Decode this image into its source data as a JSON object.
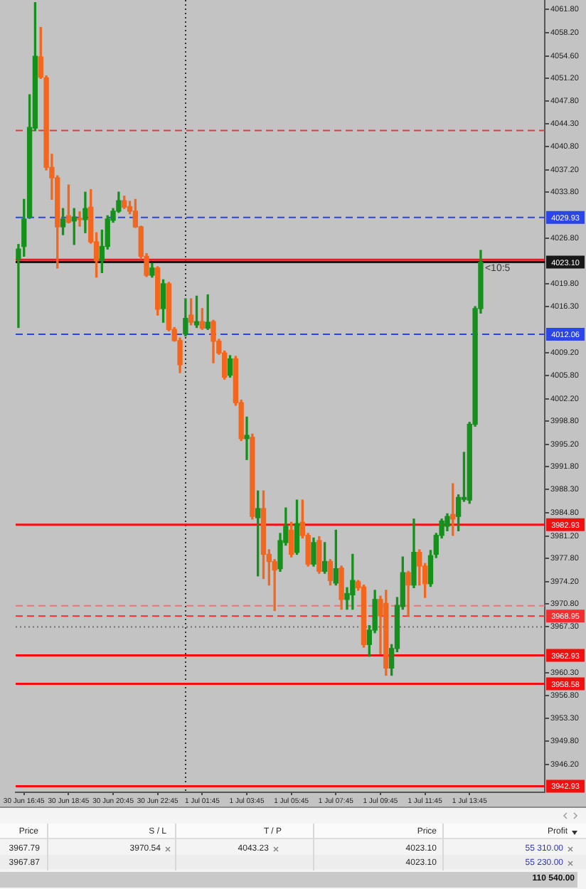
{
  "chart_data": [
    {
      "type": "candlestick",
      "categories": [
        null,
        "30 Jun 16:45",
        null,
        null,
        null,
        null,
        null,
        null,
        null,
        "30 Jun 18:45",
        null,
        null,
        null,
        null,
        null,
        null,
        null,
        "30 Jun 20:45",
        null,
        null,
        null,
        null,
        null,
        null,
        null,
        "30 Jun 22:45",
        null,
        null,
        null,
        null,
        null,
        null,
        null,
        "1 Jul 01:45",
        null,
        null,
        null,
        null,
        null,
        null,
        null,
        "1 Jul 03:45",
        null,
        null,
        null,
        null,
        null,
        null,
        null,
        "1 Jul 05:45",
        null,
        null,
        null,
        null,
        null,
        null,
        null,
        "1 Jul 07:45",
        null,
        null,
        null,
        null,
        null,
        null,
        null,
        "1 Jul 09:45",
        null,
        null,
        null,
        null,
        null,
        null,
        null,
        "1 Jul 11:45",
        null,
        null,
        null,
        null,
        null,
        null,
        null,
        "1 Jul 13:45",
        null,
        null,
        null,
        null,
        null,
        null,
        null,
        null,
        null,
        null,
        null,
        null,
        null
      ],
      "ohlc": [
        [
          4023.6,
          4025.8,
          4013.1,
          4025.1
        ],
        [
          4025.5,
          4032.7,
          4024.0,
          4029.7
        ],
        [
          4030.0,
          4048.7,
          4029.8,
          4043.7
        ],
        [
          4043.6,
          4062.8,
          4043.2,
          4054.6
        ],
        [
          4054.5,
          4059.0,
          4051.2,
          4051.4
        ],
        [
          4051.3,
          4051.6,
          4037.2,
          4037.6
        ],
        [
          4037.6,
          4039.6,
          4032.7,
          4036.0
        ],
        [
          4036.0,
          4036.3,
          4022.2,
          4028.5
        ],
        [
          4028.5,
          4031.3,
          4027.3,
          4029.7
        ],
        [
          4030.2,
          4034.9,
          4029.1,
          4029.2
        ],
        [
          4029.4,
          4031.3,
          4025.8,
          4030.0
        ],
        [
          4029.8,
          4030.8,
          4028.6,
          4029.6
        ],
        [
          4029.6,
          4033.8,
          4027.6,
          4031.3
        ],
        [
          4031.5,
          4034.2,
          4026.0,
          4026.2
        ],
        [
          4026.2,
          4027.6,
          4020.8,
          4023.3
        ],
        [
          4023.4,
          4028.0,
          4021.5,
          4025.5
        ],
        [
          4025.5,
          4030.2,
          4025.1,
          4029.7
        ],
        [
          4029.5,
          4031.3,
          4029.2,
          4030.9
        ],
        [
          4030.9,
          4033.8,
          4030.7,
          4032.5
        ],
        [
          4032.5,
          4033.2,
          4031.3,
          4031.5
        ],
        [
          4031.6,
          4032.4,
          4030.5,
          4030.9
        ],
        [
          4030.9,
          4032.7,
          4028.4,
          4028.5
        ],
        [
          4028.5,
          4028.6,
          4023.6,
          4024.0
        ],
        [
          4024.0,
          4024.4,
          4020.9,
          4021.1
        ],
        [
          4021.1,
          4022.9,
          4020.8,
          4022.2
        ],
        [
          4022.2,
          4022.4,
          4015.0,
          4015.9
        ],
        [
          4016.0,
          4020.4,
          4013.9,
          4019.8
        ],
        [
          4019.8,
          4020.0,
          4012.6,
          4012.8
        ],
        [
          4012.8,
          4013.1,
          4011.0,
          4011.1
        ],
        [
          4011.1,
          4011.5,
          4006.2,
          4007.4
        ],
        [
          4012.1,
          4017.5,
          4011.8,
          4014.5
        ],
        [
          4015.0,
          4017.5,
          4013.5,
          4013.9
        ],
        [
          4013.5,
          4017.9,
          4013.1,
          4014.0
        ],
        [
          4014.0,
          4016.0,
          4012.8,
          4013.0
        ],
        [
          4013.0,
          4018.1,
          4012.8,
          4013.9
        ],
        [
          4014.0,
          4014.2,
          4007.7,
          4011.0
        ],
        [
          4011.0,
          4011.3,
          4009.0,
          4009.2
        ],
        [
          4009.2,
          4009.5,
          4005.2,
          4005.5
        ],
        [
          4005.8,
          4008.8,
          4005.5,
          4008.3
        ],
        [
          4008.3,
          4008.7,
          4001.2,
          4001.6
        ],
        [
          4001.6,
          4002.0,
          3995.8,
          3996.1
        ],
        [
          3996.1,
          3999.4,
          3992.9,
          3996.6
        ],
        [
          3996.3,
          3996.8,
          3983.8,
          3984.2
        ],
        [
          3984.0,
          3988.1,
          3975.1,
          3985.4
        ],
        [
          3985.4,
          3988.1,
          3974.7,
          3978.4
        ],
        [
          3978.4,
          3979.1,
          3973.7,
          3977.3
        ],
        [
          3977.3,
          3977.6,
          3969.8,
          3976.0
        ],
        [
          3976.2,
          3981.6,
          3975.8,
          3980.5
        ],
        [
          3980.2,
          3985.5,
          3979.8,
          3982.7
        ],
        [
          3982.1,
          3983.3,
          3978.0,
          3978.4
        ],
        [
          3978.7,
          3986.7,
          3978.4,
          3983.1
        ],
        [
          3983.3,
          3986.7,
          3980.9,
          3981.3
        ],
        [
          3981.3,
          3981.6,
          3976.6,
          3976.9
        ],
        [
          3976.9,
          3980.9,
          3976.6,
          3980.2
        ],
        [
          3980.5,
          3981.1,
          3975.5,
          3975.8
        ],
        [
          3975.8,
          3980.2,
          3975.5,
          3977.3
        ],
        [
          3977.3,
          3977.6,
          3973.7,
          3974.4
        ],
        [
          3974.0,
          3982.1,
          3973.7,
          3976.2
        ],
        [
          3976.3,
          3976.6,
          3970.0,
          3971.5
        ],
        [
          3971.5,
          3973.3,
          3970.0,
          3972.4
        ],
        [
          3972.2,
          3978.4,
          3970.0,
          3974.4
        ],
        [
          3974.2,
          3974.4,
          3972.9,
          3973.3
        ],
        [
          3973.4,
          3973.7,
          3964.2,
          3964.6
        ],
        [
          3964.6,
          3967.5,
          3962.8,
          3966.8
        ],
        [
          3966.8,
          3972.9,
          3966.4,
          3971.5
        ],
        [
          3971.5,
          3972.0,
          3963.2,
          3969.0
        ],
        [
          3970.9,
          3972.9,
          3959.9,
          3961.0
        ],
        [
          3961.0,
          3964.6,
          3959.9,
          3964.0
        ],
        [
          3964.0,
          3971.8,
          3963.5,
          3970.6
        ],
        [
          3970.4,
          3978.0,
          3970.0,
          3975.6
        ],
        [
          3975.6,
          3975.8,
          3969.0,
          3973.7
        ],
        [
          3973.7,
          3983.8,
          3973.3,
          3978.7
        ],
        [
          3978.7,
          3979.1,
          3973.7,
          3976.6
        ],
        [
          3976.6,
          3977.0,
          3971.8,
          3973.9
        ],
        [
          3973.9,
          3979.0,
          3973.5,
          3978.2
        ],
        [
          3978.4,
          3981.6,
          3977.9,
          3981.3
        ],
        [
          3981.3,
          3983.8,
          3980.9,
          3983.5
        ],
        [
          3982.7,
          3984.6,
          3982.0,
          3984.2
        ],
        [
          3984.5,
          3989.2,
          3981.3,
          3983.8
        ],
        [
          3984.2,
          3987.5,
          3982.0,
          3987.1
        ],
        [
          3986.8,
          3994.0,
          3986.5,
          3987.1
        ],
        [
          3986.7,
          3998.6,
          3986.2,
          3998.3
        ],
        [
          3998.3,
          4016.3,
          3998.0,
          4016.0
        ],
        [
          4016.0,
          4024.9,
          4015.3,
          4023.1
        ],
        null,
        null,
        null,
        null,
        null,
        null,
        null,
        null,
        null,
        null,
        null
      ],
      "colors": [
        "#16901c",
        "#16901c",
        "#16901c",
        "#16901c",
        "#f2661e",
        "#f2661e",
        "#f2661e",
        "#f2661e",
        "#16901c",
        "#f2661e",
        "#16901c",
        "#f2661e",
        "#16901c",
        "#f2661e",
        "#f2661e",
        "#16901c",
        "#16901c",
        "#16901c",
        "#16901c",
        "#f2661e",
        "#f2661e",
        "#f2661e",
        "#f2661e",
        "#f2661e",
        "#16901c",
        "#f2661e",
        "#16901c",
        "#f2661e",
        "#f2661e",
        "#f2661e",
        "#16901c",
        "#f2661e",
        "#16901c",
        "#f2661e",
        "#16901c",
        "#f2661e",
        "#f2661e",
        "#f2661e",
        "#16901c",
        "#f2661e",
        "#f2661e",
        "#16901c",
        "#f2661e",
        "#16901c",
        "#f2661e",
        "#f2661e",
        "#f2661e",
        "#16901c",
        "#16901c",
        "#f2661e",
        "#16901c",
        "#f2661e",
        "#f2661e",
        "#16901c",
        "#f2661e",
        "#16901c",
        "#f2661e",
        "#16901c",
        "#f2661e",
        "#16901c",
        "#16901c",
        "#f2661e",
        "#f2661e",
        "#16901c",
        "#16901c",
        "#f2661e",
        "#f2661e",
        "#16901c",
        "#16901c",
        "#16901c",
        "#f2661e",
        "#16901c",
        "#f2661e",
        "#f2661e",
        "#16901c",
        "#16901c",
        "#16901c",
        "#16901c",
        "#f2661e",
        "#16901c",
        "#16901c",
        "#16901c",
        "#16901c",
        "#16901c",
        null,
        null,
        null,
        null,
        null,
        null,
        null,
        null,
        null,
        null,
        null
      ],
      "ylim": [
        3942.0,
        4063.2
      ],
      "yticks": [
        {
          "value": 4061.8,
          "label": "4061.80"
        },
        {
          "value": 4058.2,
          "label": "4058.20"
        },
        {
          "value": 4054.6,
          "label": "4054.60"
        },
        {
          "value": 4051.2,
          "label": "4051.20"
        },
        {
          "value": 4047.8,
          "label": "4047.80"
        },
        {
          "value": 4044.3,
          "label": "4044.30"
        },
        {
          "value": 4040.8,
          "label": "4040.80"
        },
        {
          "value": 4037.2,
          "label": "4037.20"
        },
        {
          "value": 4033.8,
          "label": "4033.80"
        },
        {
          "value": 4026.8,
          "label": "4026.80"
        },
        {
          "value": 4019.8,
          "label": "4019.80"
        },
        {
          "value": 4016.3,
          "label": "4016.30"
        },
        {
          "value": 4009.2,
          "label": "4009.20"
        },
        {
          "value": 4005.8,
          "label": "4005.80"
        },
        {
          "value": 4002.2,
          "label": "4002.20"
        },
        {
          "value": 3998.8,
          "label": "3998.80"
        },
        {
          "value": 3995.2,
          "label": "3995.20"
        },
        {
          "value": 3991.8,
          "label": "3991.80"
        },
        {
          "value": 3988.3,
          "label": "3988.30"
        },
        {
          "value": 3984.8,
          "label": "3984.80"
        },
        {
          "value": 3981.2,
          "label": "3981.20"
        },
        {
          "value": 3977.8,
          "label": "3977.80"
        },
        {
          "value": 3974.2,
          "label": "3974.20"
        },
        {
          "value": 3970.8,
          "label": "3970.80"
        },
        {
          "value": 3967.3,
          "label": "3967.30"
        },
        {
          "value": 3960.3,
          "label": "3960.30"
        },
        {
          "value": 3956.8,
          "label": "3956.80"
        },
        {
          "value": 3953.3,
          "label": "3953.30"
        },
        {
          "value": 3949.8,
          "label": "3949.80"
        },
        {
          "value": 3946.2,
          "label": "3946.20"
        }
      ],
      "grid": false,
      "legend": false,
      "ref_lines": [
        {
          "axis": "y",
          "value": 4043.23,
          "color": "#e03c3c",
          "line_style": "dashed"
        },
        {
          "axis": "y",
          "value": 4029.93,
          "label": "4029.93",
          "color": "#2b45e6",
          "line_style": "dashed"
        },
        {
          "axis": "y",
          "value": 4023.47,
          "color": "#e02020"
        },
        {
          "axis": "y",
          "value": 4023.1,
          "label": "4023.10",
          "color": "#181818"
        },
        {
          "axis": "y",
          "value": 4012.06,
          "label": "4012.06",
          "color": "#2b45e6",
          "line_style": "dashed"
        },
        {
          "axis": "y",
          "value": 3982.93,
          "label": "3982.93",
          "color": "#f01010"
        },
        {
          "axis": "y",
          "value": 3970.54,
          "color": "#e87878",
          "line_style": "dashed"
        },
        {
          "axis": "y",
          "value": 3968.95,
          "label": "3968.95",
          "color": "#f03030",
          "line_style": "dashed"
        },
        {
          "axis": "y",
          "value": 3967.3,
          "color": "#707070",
          "line_style": "dotted"
        },
        {
          "axis": "y",
          "value": 3962.93,
          "label": "3962.93",
          "color": "#f01010"
        },
        {
          "axis": "y",
          "value": 3958.58,
          "label": "3958.58",
          "color": "#f01010"
        },
        {
          "axis": "y",
          "value": 3942.93,
          "label": "3942.93",
          "color": "#f01010"
        }
      ],
      "annotations": [
        "<10:5"
      ]
    },
    {
      "type": "other",
      "categories": [
        "Price",
        "S / L",
        "T / P",
        "Price",
        "Profit"
      ],
      "cell_labels": [
        [
          "3967.79",
          "3970.54",
          "4043.23",
          "4023.10",
          "55 310.00"
        ],
        [
          "3967.87",
          null,
          null,
          "4023.10",
          "55 230.00"
        ]
      ],
      "annotations": [
        "110 540.00"
      ]
    }
  ]
}
